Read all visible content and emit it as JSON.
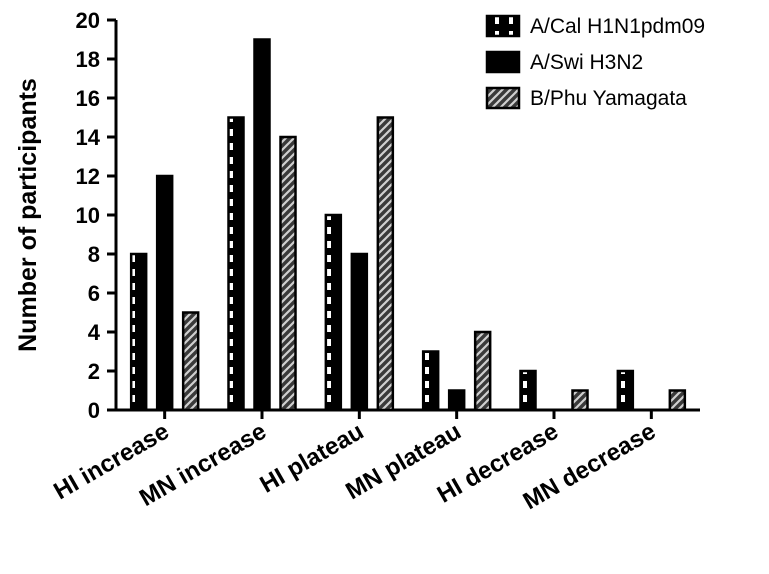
{
  "chart_data": {
    "type": "bar",
    "title": "",
    "xlabel": "",
    "ylabel": "Number of participants",
    "ylim": [
      0,
      20
    ],
    "yticks": [
      0,
      2,
      4,
      6,
      8,
      10,
      12,
      14,
      16,
      18,
      20
    ],
    "categories": [
      "HI increase",
      "MN increase",
      "HI plateau",
      "MN plateau",
      "HI decrease",
      "MN decrease"
    ],
    "series": [
      {
        "name": "A/Cal H1N1pdm09",
        "values": [
          8,
          15,
          10,
          3,
          2,
          2
        ],
        "pattern": "dashed-white",
        "color": "#000000"
      },
      {
        "name": "A/Swi H3N2",
        "values": [
          12,
          19,
          8,
          1,
          0,
          0
        ],
        "pattern": "solid",
        "color": "#000000"
      },
      {
        "name": "B/Phu Yamagata",
        "values": [
          5,
          14,
          15,
          4,
          1,
          1
        ],
        "pattern": "diagonal-gray",
        "color": "#808080"
      }
    ],
    "legend": "top-right",
    "grid": false
  }
}
